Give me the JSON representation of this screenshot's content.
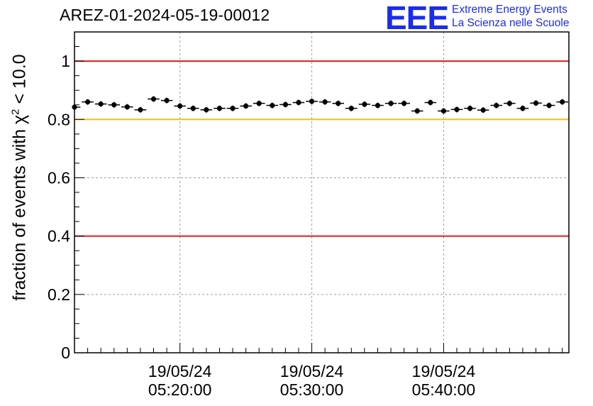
{
  "title": "AREZ-01-2024-05-19-00012",
  "logo": {
    "mark": "EEE",
    "line1": "Extreme Energy Events",
    "line2": "La Scienza nelle Scuole",
    "color": "#1a2cf0"
  },
  "chart_data": {
    "type": "scatter",
    "title": "AREZ-01-2024-05-19-00012",
    "ylabel_parts": [
      "fraction of events with ",
      "χ",
      "2",
      " < 10.0"
    ],
    "xlabel": "",
    "ylim": [
      0,
      1.1
    ],
    "yticks": [
      0,
      0.2,
      0.4,
      0.6,
      0.8,
      1
    ],
    "ytick_labels": [
      "0",
      "0.2",
      "0.4",
      "0.6",
      "0.8",
      "1"
    ],
    "xlim_minutes": [
      12.0,
      49.5
    ],
    "xticks": [
      {
        "minutes": 20,
        "label": [
          "19/05/24",
          "05:20:00"
        ]
      },
      {
        "minutes": 30,
        "label": [
          "19/05/24",
          "05:30:00"
        ]
      },
      {
        "minutes": 40,
        "label": [
          "19/05/24",
          "05:40:00"
        ]
      }
    ],
    "grid": true,
    "reference_lines": [
      {
        "y": 1.0,
        "color": "#e41a1c"
      },
      {
        "y": 0.8,
        "color": "#ffc000"
      },
      {
        "y": 0.4,
        "color": "#e41a1c"
      }
    ],
    "series": [
      {
        "marker_color": "#000000",
        "bin_width_minutes": 1,
        "x_minutes": [
          12.0,
          13.0,
          14.0,
          15.0,
          16.0,
          17.0,
          18.0,
          19.0,
          20.0,
          21.0,
          22.0,
          23.0,
          24.0,
          25.0,
          26.0,
          27.0,
          28.0,
          29.0,
          30.0,
          31.0,
          32.0,
          33.0,
          34.0,
          35.0,
          36.0,
          37.0,
          38.0,
          39.0,
          40.0,
          41.0,
          42.0,
          43.0,
          44.0,
          45.0,
          46.0,
          47.0,
          48.0,
          49.0
        ],
        "y": [
          0.842,
          0.86,
          0.853,
          0.85,
          0.843,
          0.833,
          0.87,
          0.865,
          0.846,
          0.838,
          0.833,
          0.838,
          0.838,
          0.846,
          0.855,
          0.848,
          0.851,
          0.858,
          0.862,
          0.86,
          0.855,
          0.838,
          0.852,
          0.848,
          0.855,
          0.855,
          0.829,
          0.858,
          0.829,
          0.834,
          0.838,
          0.832,
          0.848,
          0.855,
          0.838,
          0.856,
          0.848,
          0.86
        ]
      }
    ]
  }
}
